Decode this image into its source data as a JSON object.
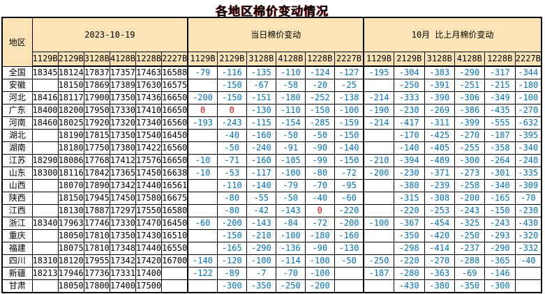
{
  "title": "各地区棉价变动情况",
  "colors": {
    "header_background": "#FCE4B6",
    "change_negative_text": "#0070C0",
    "change_zero_text": "#FF0000",
    "price_text": "#000000",
    "border": "#000000",
    "title_text": "#000000",
    "title_shadow": "#C00000"
  },
  "table": {
    "region_header": "地区",
    "sections": [
      {
        "label": "2023-10-19",
        "grades": [
          "1129B",
          "2129B",
          "3128B",
          "4128B",
          "1228B",
          "2227B"
        ]
      },
      {
        "label": "当日棉价变动",
        "grades": [
          "1129B",
          "2129B",
          "3128B",
          "4128B",
          "1228B",
          "2227B"
        ]
      },
      {
        "label": "10月 比上月棉价变动",
        "grades": [
          "1129B",
          "2129B",
          "3128B",
          "4128B",
          "1228B",
          "2227B"
        ]
      }
    ],
    "rows": [
      {
        "region": "全国",
        "prices": [
          "18345",
          "18124",
          "17837",
          "17357",
          "17463",
          "16588"
        ],
        "daily": [
          "-79",
          "-116",
          "-135",
          "-110",
          "-124",
          "-127"
        ],
        "monthly": [
          "-195",
          "-304",
          "-383",
          "-290",
          "-317",
          "-344"
        ]
      },
      {
        "region": "安徽",
        "prices": [
          "",
          "18150",
          "17869",
          "17389",
          "17630",
          "16575"
        ],
        "daily": [
          "",
          "-150",
          "-67",
          "-58",
          "-20",
          "-25"
        ],
        "monthly": [
          "",
          "-250",
          "-391",
          "-251",
          "-215",
          "-180"
        ]
      },
      {
        "region": "河北",
        "prices": [
          "18416",
          "18117",
          "17900",
          "17350",
          "17436",
          "16650"
        ],
        "daily": [
          "-200",
          "-150",
          "-151",
          "-180",
          "-252",
          "-138"
        ],
        "monthly": [
          "-214",
          "-333",
          "-390",
          "-306",
          "-349",
          "-100"
        ]
      },
      {
        "region": "广东",
        "prices": [
          "18400",
          "18200",
          "17950",
          "17330",
          "17410",
          "16650"
        ],
        "daily": [
          "0",
          "0",
          "-130",
          "-110",
          "-150",
          "-100"
        ],
        "monthly": [
          "-190",
          "-230",
          "-269",
          "-386",
          "-435",
          "-270"
        ]
      },
      {
        "region": "河南",
        "prices": [
          "18460",
          "18025",
          "17920",
          "17320",
          "17340",
          "16560"
        ],
        "daily": [
          "-193",
          "-243",
          "-115",
          "-154",
          "-285",
          "-159"
        ],
        "monthly": [
          "-214",
          "-417",
          "-311",
          "-399",
          "-555",
          "-632"
        ]
      },
      {
        "region": "湖北",
        "prices": [
          "",
          "18190",
          "17815",
          "17350",
          "17540",
          "16450"
        ],
        "daily": [
          "",
          "-40",
          "-160",
          "-50",
          "-50",
          "-150"
        ],
        "monthly": [
          "",
          "-170",
          "-425",
          "-270",
          "-187",
          "-395"
        ]
      },
      {
        "region": "湖南",
        "prices": [
          "",
          "18180",
          "17750",
          "17380",
          "17422",
          "16560"
        ],
        "daily": [
          "",
          "-50",
          "-240",
          "-91",
          "-90",
          "-140"
        ],
        "monthly": [
          "",
          "-140",
          "-405",
          "-255",
          "-358",
          "-340"
        ]
      },
      {
        "region": "江苏",
        "prices": [
          "18290",
          "18086",
          "17768",
          "17412",
          "17576",
          "16650"
        ],
        "daily": [
          "-10",
          "-71",
          "-160",
          "-105",
          "-99",
          "-150"
        ],
        "monthly": [
          "-210",
          "-394",
          "-489",
          "-300",
          "-264",
          "-240"
        ]
      },
      {
        "region": "山东",
        "prices": [
          "18300",
          "18116",
          "17842",
          "17365",
          "17450",
          "16638"
        ],
        "daily": [
          "-10",
          "-53",
          "-117",
          "-100",
          "-80",
          "-72"
        ],
        "monthly": [
          "-200",
          "-230",
          "-371",
          "-273",
          "-301",
          "-335"
        ]
      },
      {
        "region": "山西",
        "prices": [
          "",
          "18070",
          "17890",
          "17342",
          "17440",
          "16561"
        ],
        "daily": [
          "",
          "-110",
          "-140",
          "-79",
          "-70",
          "-95"
        ],
        "monthly": [
          "",
          "-380",
          "-239",
          "-258",
          "-340",
          "-309"
        ]
      },
      {
        "region": "陕西",
        "prices": [
          "",
          "18150",
          "17945",
          "17450",
          "17580",
          "16675"
        ],
        "daily": [
          "",
          "-80",
          "-55",
          "-50",
          "-40",
          "-60"
        ],
        "monthly": [
          "",
          "-315",
          "-308",
          "-200",
          "-165",
          "-70"
        ]
      },
      {
        "region": "江西",
        "prices": [
          "",
          "18130",
          "17887",
          "17297",
          "17550",
          "16580"
        ],
        "daily": [
          "",
          "-80",
          "-42",
          "-143",
          "0",
          "-220"
        ],
        "monthly": [
          "",
          "-220",
          "-253",
          "-243",
          "-150",
          "-230"
        ]
      },
      {
        "region": "浙江",
        "prices": [
          "18340",
          "17963",
          "17746",
          "17330",
          "17470",
          "16450"
        ],
        "daily": [
          "-60",
          "-200",
          "-143",
          "-84",
          "-72",
          "-200"
        ],
        "monthly": [
          "-100",
          "-367",
          "-454",
          "-325",
          "-243",
          "-430"
        ]
      },
      {
        "region": "重庆",
        "prices": [
          "",
          "18050",
          "17810",
          "17350",
          "17430",
          "16510"
        ],
        "daily": [
          "",
          "-150",
          "-210",
          "-100",
          "-180",
          "-160"
        ],
        "monthly": [
          "",
          "-350",
          "-420",
          "-250",
          "-293",
          "-320"
        ]
      },
      {
        "region": "福建",
        "prices": [
          "",
          "18075",
          "17810",
          "17348",
          "17440",
          "16550"
        ],
        "daily": [
          "",
          "-165",
          "-290",
          "-136",
          "-90",
          "-130"
        ],
        "monthly": [
          "",
          "-298",
          "-414",
          "-237",
          "-290",
          "-332"
        ]
      },
      {
        "region": "四川",
        "prices": [
          "18310",
          "18120",
          "17955",
          "17342",
          "17420",
          "16700"
        ],
        "daily": [
          "-140",
          "-120",
          "-100",
          "-114",
          "-100",
          "-50"
        ],
        "monthly": [
          "-250",
          "-220",
          "-270",
          "-288",
          "-365",
          "-40"
        ]
      },
      {
        "region": "新疆",
        "prices": [
          "18213",
          "17946",
          "17736",
          "17331",
          "17400",
          ""
        ],
        "daily": [
          "-122",
          "-89",
          "-7",
          "-70",
          "-100",
          ""
        ],
        "monthly": [
          "-187",
          "-280",
          "-363",
          "-69",
          "-146",
          ""
        ]
      },
      {
        "region": "甘肃",
        "prices": [
          "",
          "18050",
          "17800",
          "17400",
          "17500",
          ""
        ],
        "daily": [
          "",
          "-300",
          "-350",
          "-250",
          "-200",
          ""
        ],
        "monthly": [
          "",
          "-430",
          "-380",
          "-350",
          "-300",
          ""
        ]
      }
    ]
  }
}
